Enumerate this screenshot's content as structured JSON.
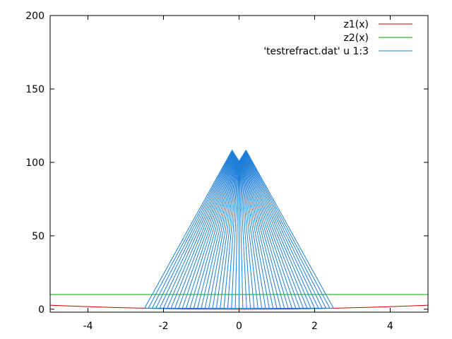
{
  "chart_data": {
    "type": "line",
    "title": "",
    "xlabel": "",
    "ylabel": "",
    "xlim": [
      -5,
      5
    ],
    "ylim": [
      -2,
      200
    ],
    "xticks": [
      -4,
      -2,
      0,
      2,
      4
    ],
    "yticks": [
      0,
      50,
      100,
      150,
      200
    ],
    "grid": false,
    "legend_position": "top-right",
    "series": [
      {
        "name": "z1(x)",
        "color": "#cc0000",
        "kind": "function",
        "formula": "0.11*x^2",
        "samples": 101
      },
      {
        "name": "z2(x)",
        "color": "#00a000",
        "kind": "function",
        "formula": "10",
        "samples": 2
      },
      {
        "name": "'testrefract.dat' u 1:3",
        "color": "#1e7fd8",
        "kind": "rays",
        "ray_count": 51,
        "base_x_start": -2.5,
        "base_x_end": 2.5,
        "base_y": 0.7,
        "apex_x": 0,
        "apex_y_center": 101,
        "apex_y_edge": 108.5,
        "apex_half_width": 0.18
      }
    ]
  }
}
